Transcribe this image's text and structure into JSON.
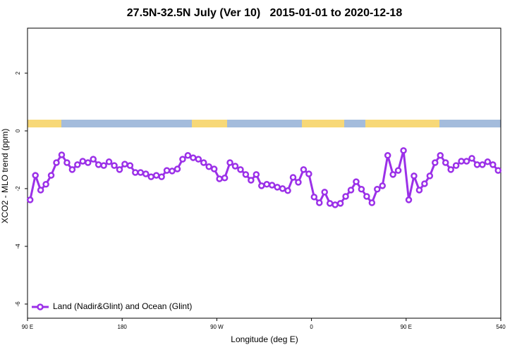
{
  "chart_data": {
    "type": "line",
    "title": "27.5N-32.5N July (Ver 10)   2015-01-01 to 2020-12-18",
    "xlabel": "Longitude (deg E)",
    "ylabel": "XCO2 - MLO trend (ppm)",
    "xlim": [
      90,
      540
    ],
    "ylim": [
      -6.49,
      3.56
    ],
    "xticks": [
      {
        "value": 90,
        "label": "90 E"
      },
      180,
      {
        "value": 270,
        "label": "90 W"
      },
      {
        "value": 360,
        "label": "0"
      },
      {
        "value": 450,
        "label": "90 E"
      },
      540
    ],
    "yticks": [
      2,
      0,
      -2,
      -4,
      -6
    ],
    "grid": false,
    "legend": "bottom-left",
    "x": [
      92.5,
      97.5,
      102.5,
      107.5,
      112.5,
      117.5,
      122.5,
      127.5,
      132.5,
      137.5,
      142.5,
      147.5,
      152.5,
      157.5,
      162.5,
      167.5,
      172.5,
      177.5,
      182.5,
      187.5,
      192.5,
      197.5,
      202.5,
      207.5,
      212.5,
      217.5,
      222.5,
      227.5,
      232.5,
      237.5,
      242.5,
      247.5,
      252.5,
      257.5,
      262.5,
      267.5,
      272.5,
      277.5,
      282.5,
      287.5,
      292.5,
      297.5,
      302.5,
      307.5,
      312.5,
      317.5,
      322.5,
      327.5,
      332.5,
      337.5,
      342.5,
      347.5,
      352.5,
      357.5,
      362.5,
      367.5,
      372.5,
      377.5,
      382.5,
      387.5,
      392.5,
      397.5,
      402.5,
      407.5,
      412.5,
      417.5,
      422.5,
      427.5,
      432.5,
      437.5,
      442.5,
      447.5,
      452.5,
      457.5,
      462.5,
      467.5,
      472.5,
      477.5,
      482.5,
      487.5,
      492.5,
      497.5,
      502.5,
      507.5,
      512.5,
      517.5,
      522.5,
      527.5,
      532.5,
      537.5
    ],
    "series": [
      {
        "name": "Land (Nadir&Glint) and Ocean (Glint)",
        "color": "#9b30e8",
        "values": [
          -2.39,
          -1.54,
          -2.05,
          -1.85,
          -1.54,
          -1.1,
          -0.83,
          -1.1,
          -1.34,
          -1.17,
          -1.05,
          -1.1,
          -0.98,
          -1.17,
          -1.2,
          -1.07,
          -1.2,
          -1.34,
          -1.15,
          -1.2,
          -1.44,
          -1.44,
          -1.49,
          -1.59,
          -1.54,
          -1.59,
          -1.37,
          -1.39,
          -1.32,
          -0.98,
          -0.85,
          -0.93,
          -0.98,
          -1.1,
          -1.24,
          -1.32,
          -1.66,
          -1.63,
          -1.1,
          -1.22,
          -1.34,
          -1.51,
          -1.71,
          -1.51,
          -1.9,
          -1.85,
          -1.88,
          -1.95,
          -2.0,
          -2.07,
          -1.61,
          -1.78,
          -1.34,
          -1.49,
          -2.29,
          -2.49,
          -2.12,
          -2.51,
          -2.56,
          -2.51,
          -2.27,
          -2.05,
          -1.76,
          -2.02,
          -2.27,
          -2.49,
          -2.02,
          -1.9,
          -0.85,
          -1.51,
          -1.37,
          -0.68,
          -2.39,
          -1.56,
          -2.05,
          -1.83,
          -1.56,
          -1.1,
          -0.85,
          -1.1,
          -1.34,
          -1.2,
          -1.05,
          -1.05,
          -0.95,
          -1.17,
          -1.17,
          -1.07,
          -1.17,
          -1.37
        ]
      }
    ]
  }
}
